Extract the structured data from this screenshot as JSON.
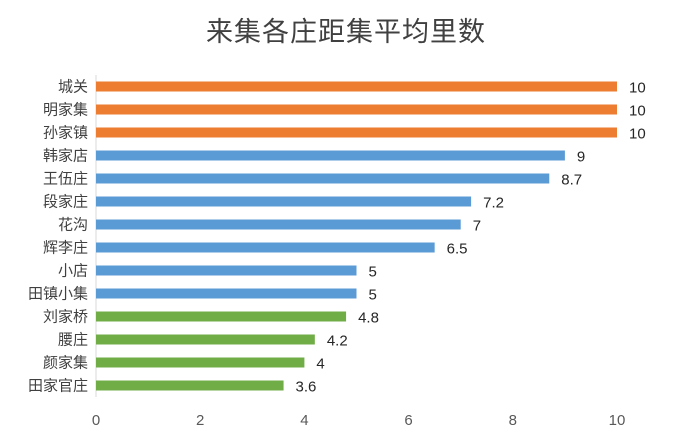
{
  "chart_data": {
    "type": "bar",
    "orientation": "horizontal",
    "title": "来集各庄距集平均里数",
    "xlabel": "",
    "ylabel": "",
    "xlim": [
      0,
      10
    ],
    "xticks": [
      0,
      2,
      4,
      6,
      8,
      10
    ],
    "grid": false,
    "categories": [
      "城关",
      "明家集",
      "孙家镇",
      "韩家店",
      "王伍庄",
      "段家庄",
      "花沟",
      "辉李庄",
      "小店",
      "田镇小集",
      "刘家桥",
      "腰庄",
      "颜家集",
      "田家官庄"
    ],
    "values": [
      10,
      10,
      10,
      9,
      8.7,
      7.2,
      7,
      6.5,
      5,
      5,
      4.8,
      4.2,
      4,
      3.6
    ],
    "data_labels": [
      "10",
      "10",
      "10",
      "9",
      "8.7",
      "7.2",
      "7",
      "6.5",
      "5",
      "5",
      "4.8",
      "4.2",
      "4",
      "3.6"
    ],
    "bar_colors": [
      "#ED7D31",
      "#ED7D31",
      "#ED7D31",
      "#5B9BD5",
      "#5B9BD5",
      "#5B9BD5",
      "#5B9BD5",
      "#5B9BD5",
      "#5B9BD5",
      "#5B9BD5",
      "#70AD47",
      "#70AD47",
      "#70AD47",
      "#70AD47"
    ]
  }
}
